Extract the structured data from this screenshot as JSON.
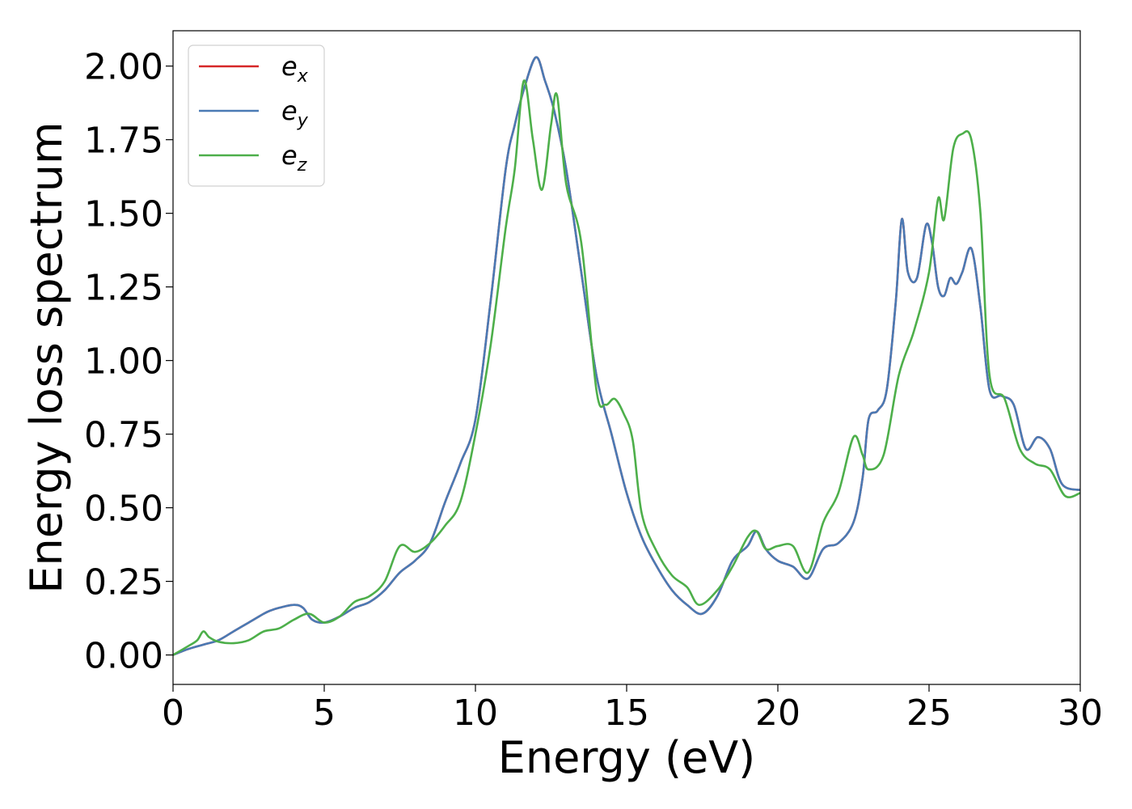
{
  "chart_data": {
    "type": "line",
    "title": "",
    "xlabel": "Energy (eV)",
    "ylabel": "Energy loss spectrum",
    "xlim": [
      0,
      30
    ],
    "ylim": [
      -0.1,
      2.12
    ],
    "xticks": [
      0,
      5,
      10,
      15,
      20,
      25,
      30
    ],
    "xtick_labels": [
      "0",
      "5",
      "10",
      "15",
      "20",
      "25",
      "30"
    ],
    "yticks": [
      0.0,
      0.25,
      0.5,
      0.75,
      1.0,
      1.25,
      1.5,
      1.75,
      2.0
    ],
    "ytick_labels": [
      "0.00",
      "0.25",
      "0.50",
      "0.75",
      "1.00",
      "1.25",
      "1.50",
      "1.75",
      "2.00"
    ],
    "grid": false,
    "legend_position": "top-left",
    "series": [
      {
        "name": "e_x",
        "legend_base": "e",
        "legend_sub": "x",
        "color": "#d62728",
        "x": [
          0,
          0.5,
          1,
          1.5,
          2,
          2.5,
          3,
          3.2,
          3.5,
          4,
          4.3,
          4.6,
          5,
          5.5,
          6,
          6.5,
          7,
          7.5,
          8,
          8.5,
          9,
          9.5,
          10,
          10.5,
          11,
          11.3,
          11.6,
          12,
          12.3,
          12.6,
          13,
          13.5,
          14,
          14.5,
          15,
          15.5,
          16,
          16.5,
          17,
          17.5,
          18,
          18.5,
          19,
          19.3,
          19.6,
          20,
          20.5,
          21,
          21.5,
          22,
          22.5,
          22.8,
          23,
          23.3,
          23.6,
          23.9,
          24.1,
          24.3,
          24.6,
          24.9,
          25.1,
          25.3,
          25.5,
          25.7,
          25.9,
          26.1,
          26.4,
          26.7,
          27,
          27.4,
          27.8,
          28.2,
          28.6,
          29,
          29.4,
          30
        ],
        "y": [
          0,
          0.02,
          0.035,
          0.05,
          0.08,
          0.11,
          0.14,
          0.15,
          0.16,
          0.17,
          0.16,
          0.12,
          0.11,
          0.13,
          0.16,
          0.18,
          0.22,
          0.28,
          0.32,
          0.38,
          0.52,
          0.65,
          0.8,
          1.2,
          1.65,
          1.8,
          1.92,
          2.03,
          1.95,
          1.85,
          1.65,
          1.3,
          0.95,
          0.75,
          0.55,
          0.4,
          0.3,
          0.22,
          0.17,
          0.14,
          0.2,
          0.32,
          0.37,
          0.42,
          0.36,
          0.32,
          0.3,
          0.26,
          0.36,
          0.38,
          0.45,
          0.6,
          0.8,
          0.83,
          0.9,
          1.2,
          1.48,
          1.3,
          1.28,
          1.46,
          1.4,
          1.25,
          1.22,
          1.28,
          1.26,
          1.3,
          1.38,
          1.18,
          0.9,
          0.88,
          0.85,
          0.7,
          0.74,
          0.7,
          0.58,
          0.56
        ]
      },
      {
        "name": "e_y",
        "legend_base": "e",
        "legend_sub": "y",
        "color": "#4a7ab4",
        "x": [
          0,
          0.5,
          1,
          1.5,
          2,
          2.5,
          3,
          3.2,
          3.5,
          4,
          4.3,
          4.6,
          5,
          5.5,
          6,
          6.5,
          7,
          7.5,
          8,
          8.5,
          9,
          9.5,
          10,
          10.5,
          11,
          11.3,
          11.6,
          12,
          12.3,
          12.6,
          13,
          13.5,
          14,
          14.5,
          15,
          15.5,
          16,
          16.5,
          17,
          17.5,
          18,
          18.5,
          19,
          19.3,
          19.6,
          20,
          20.5,
          21,
          21.5,
          22,
          22.5,
          22.8,
          23,
          23.3,
          23.6,
          23.9,
          24.1,
          24.3,
          24.6,
          24.9,
          25.1,
          25.3,
          25.5,
          25.7,
          25.9,
          26.1,
          26.4,
          26.7,
          27,
          27.4,
          27.8,
          28.2,
          28.6,
          29,
          29.4,
          30
        ],
        "y": [
          0,
          0.02,
          0.035,
          0.05,
          0.08,
          0.11,
          0.14,
          0.15,
          0.16,
          0.17,
          0.16,
          0.12,
          0.11,
          0.13,
          0.16,
          0.18,
          0.22,
          0.28,
          0.32,
          0.38,
          0.52,
          0.65,
          0.8,
          1.2,
          1.65,
          1.8,
          1.92,
          2.03,
          1.95,
          1.85,
          1.65,
          1.3,
          0.95,
          0.75,
          0.55,
          0.4,
          0.3,
          0.22,
          0.17,
          0.14,
          0.2,
          0.32,
          0.37,
          0.42,
          0.36,
          0.32,
          0.3,
          0.26,
          0.36,
          0.38,
          0.45,
          0.6,
          0.8,
          0.83,
          0.9,
          1.2,
          1.48,
          1.3,
          1.28,
          1.46,
          1.4,
          1.25,
          1.22,
          1.28,
          1.26,
          1.3,
          1.38,
          1.18,
          0.9,
          0.88,
          0.85,
          0.7,
          0.74,
          0.7,
          0.58,
          0.56
        ]
      },
      {
        "name": "e_z",
        "legend_base": "e",
        "legend_sub": "z",
        "color": "#4daf4a",
        "x": [
          0,
          0.5,
          0.8,
          1,
          1.2,
          1.5,
          2,
          2.5,
          3,
          3.5,
          4,
          4.5,
          5,
          5.5,
          6,
          6.5,
          7,
          7.5,
          8,
          8.5,
          9,
          9.5,
          10,
          10.5,
          11,
          11.3,
          11.6,
          11.9,
          12.2,
          12.5,
          12.7,
          13,
          13.5,
          14,
          14.3,
          14.6,
          14.9,
          15.2,
          15.5,
          16,
          16.5,
          17,
          17.4,
          18,
          18.5,
          19,
          19.3,
          19.6,
          20,
          20.5,
          21,
          21.5,
          22,
          22.5,
          22.8,
          23,
          23.5,
          24,
          24.5,
          25,
          25.3,
          25.5,
          25.8,
          26.1,
          26.4,
          26.7,
          27,
          27.5,
          28,
          28.5,
          29,
          29.5,
          30
        ],
        "y": [
          0,
          0.03,
          0.05,
          0.08,
          0.06,
          0.045,
          0.04,
          0.05,
          0.08,
          0.09,
          0.12,
          0.14,
          0.11,
          0.13,
          0.18,
          0.2,
          0.25,
          0.37,
          0.35,
          0.38,
          0.44,
          0.52,
          0.75,
          1.05,
          1.45,
          1.65,
          1.95,
          1.75,
          1.58,
          1.8,
          1.9,
          1.6,
          1.4,
          0.9,
          0.85,
          0.87,
          0.82,
          0.73,
          0.48,
          0.35,
          0.27,
          0.23,
          0.17,
          0.22,
          0.3,
          0.4,
          0.42,
          0.36,
          0.37,
          0.37,
          0.28,
          0.45,
          0.55,
          0.74,
          0.68,
          0.63,
          0.68,
          0.95,
          1.1,
          1.3,
          1.55,
          1.48,
          1.72,
          1.77,
          1.75,
          1.5,
          0.95,
          0.87,
          0.7,
          0.65,
          0.63,
          0.54,
          0.55
        ]
      }
    ]
  }
}
